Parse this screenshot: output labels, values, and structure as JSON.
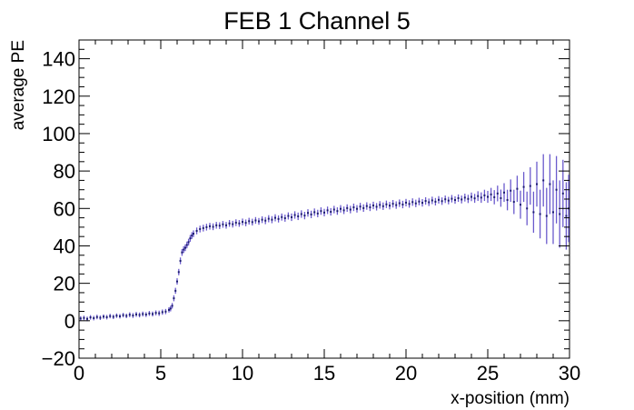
{
  "chart_data": {
    "type": "scatter",
    "title": "FEB 1 Channel 5",
    "xlabel": "x-position (mm)",
    "ylabel": "average PE",
    "xlim": [
      0,
      30
    ],
    "ylim": [
      -20,
      150
    ],
    "x_ticks": [
      0,
      5,
      10,
      15,
      20,
      25,
      30
    ],
    "x_tick_labels": [
      "0",
      "5",
      "10",
      "15",
      "20",
      "25",
      "30"
    ],
    "y_ticks": [
      -20,
      0,
      20,
      40,
      60,
      80,
      100,
      120,
      140
    ],
    "y_tick_labels": [
      "−20",
      "0",
      "20",
      "40",
      "60",
      "80",
      "100",
      "120",
      "140"
    ],
    "grid": false,
    "legend": "none",
    "series": [
      {
        "name": "average PE",
        "marker_color": "#1a1a6e",
        "errorbar_color": "#6a5acd",
        "points": [
          [
            0.1,
            1.2,
            1.2
          ],
          [
            0.3,
            1.5,
            1.2
          ],
          [
            0.5,
            1.0,
            1.2
          ],
          [
            0.7,
            1.8,
            1.2
          ],
          [
            0.9,
            1.4,
            1.2
          ],
          [
            1.1,
            2.0,
            1.2
          ],
          [
            1.3,
            1.6,
            1.2
          ],
          [
            1.5,
            2.2,
            1.2
          ],
          [
            1.7,
            1.9,
            1.2
          ],
          [
            1.9,
            2.5,
            1.2
          ],
          [
            2.1,
            2.1,
            1.2
          ],
          [
            2.3,
            2.7,
            1.2
          ],
          [
            2.5,
            2.4,
            1.2
          ],
          [
            2.7,
            3.0,
            1.2
          ],
          [
            2.9,
            2.6,
            1.2
          ],
          [
            3.1,
            3.2,
            1.3
          ],
          [
            3.3,
            2.8,
            1.3
          ],
          [
            3.5,
            3.4,
            1.3
          ],
          [
            3.7,
            3.1,
            1.3
          ],
          [
            3.9,
            3.6,
            1.3
          ],
          [
            4.1,
            3.3,
            1.3
          ],
          [
            4.3,
            3.9,
            1.3
          ],
          [
            4.5,
            3.6,
            1.3
          ],
          [
            4.7,
            4.2,
            1.3
          ],
          [
            4.9,
            4.0,
            1.4
          ],
          [
            5.1,
            4.6,
            1.4
          ],
          [
            5.3,
            4.9,
            1.4
          ],
          [
            5.5,
            5.8,
            1.4
          ],
          [
            5.6,
            6.5,
            1.5
          ],
          [
            5.7,
            8.0,
            1.5
          ],
          [
            5.8,
            12.0,
            1.6
          ],
          [
            5.9,
            16.0,
            1.6
          ],
          [
            6.0,
            21.0,
            1.7
          ],
          [
            6.1,
            26.0,
            1.7
          ],
          [
            6.2,
            32.0,
            1.8
          ],
          [
            6.3,
            36.5,
            1.8
          ],
          [
            6.4,
            38.0,
            1.8
          ],
          [
            6.5,
            39.0,
            1.8
          ],
          [
            6.6,
            40.5,
            1.8
          ],
          [
            6.7,
            42.0,
            1.8
          ],
          [
            6.8,
            44.0,
            1.8
          ],
          [
            6.9,
            45.5,
            1.8
          ],
          [
            7.0,
            46.5,
            1.8
          ],
          [
            7.2,
            48.0,
            1.8
          ],
          [
            7.4,
            49.0,
            1.8
          ],
          [
            7.6,
            49.5,
            1.8
          ],
          [
            7.8,
            50.0,
            1.8
          ],
          [
            8.0,
            50.5,
            1.8
          ],
          [
            8.2,
            50.2,
            1.8
          ],
          [
            8.4,
            51.0,
            1.8
          ],
          [
            8.6,
            50.8,
            1.8
          ],
          [
            8.8,
            51.5,
            1.8
          ],
          [
            9.0,
            51.0,
            1.8
          ],
          [
            9.2,
            52.0,
            1.8
          ],
          [
            9.4,
            51.6,
            1.8
          ],
          [
            9.6,
            52.4,
            1.8
          ],
          [
            9.8,
            52.0,
            1.8
          ],
          [
            10.0,
            52.8,
            1.8
          ],
          [
            10.2,
            52.3,
            1.8
          ],
          [
            10.4,
            53.2,
            1.8
          ],
          [
            10.6,
            52.7,
            1.8
          ],
          [
            10.8,
            53.6,
            1.8
          ],
          [
            11.0,
            53.1,
            1.8
          ],
          [
            11.2,
            54.0,
            1.8
          ],
          [
            11.4,
            53.5,
            1.9
          ],
          [
            11.6,
            54.5,
            1.9
          ],
          [
            11.8,
            54.0,
            1.9
          ],
          [
            12.0,
            55.0,
            1.9
          ],
          [
            12.2,
            54.4,
            1.9
          ],
          [
            12.4,
            55.4,
            1.9
          ],
          [
            12.6,
            54.8,
            1.9
          ],
          [
            12.8,
            56.0,
            1.9
          ],
          [
            13.0,
            55.3,
            2.0
          ],
          [
            13.2,
            56.5,
            2.0
          ],
          [
            13.4,
            55.8,
            2.0
          ],
          [
            13.6,
            57.0,
            2.0
          ],
          [
            13.8,
            56.2,
            2.0
          ],
          [
            14.0,
            57.6,
            2.0
          ],
          [
            14.2,
            56.8,
            2.0
          ],
          [
            14.4,
            58.0,
            2.0
          ],
          [
            14.6,
            57.3,
            2.0
          ],
          [
            14.8,
            58.6,
            2.0
          ],
          [
            15.0,
            57.8,
            2.0
          ],
          [
            15.2,
            59.0,
            2.0
          ],
          [
            15.4,
            58.2,
            2.0
          ],
          [
            15.6,
            59.4,
            2.0
          ],
          [
            15.8,
            58.6,
            2.0
          ],
          [
            16.0,
            59.8,
            2.0
          ],
          [
            16.2,
            59.0,
            2.0
          ],
          [
            16.4,
            60.2,
            2.0
          ],
          [
            16.6,
            59.4,
            2.0
          ],
          [
            16.8,
            60.6,
            2.0
          ],
          [
            17.0,
            59.8,
            2.0
          ],
          [
            17.2,
            61.0,
            2.0
          ],
          [
            17.4,
            60.2,
            2.0
          ],
          [
            17.6,
            61.3,
            2.0
          ],
          [
            17.8,
            60.6,
            2.0
          ],
          [
            18.0,
            61.6,
            2.0
          ],
          [
            18.2,
            60.9,
            2.0
          ],
          [
            18.4,
            61.9,
            2.0
          ],
          [
            18.6,
            61.2,
            2.0
          ],
          [
            18.8,
            62.2,
            2.0
          ],
          [
            19.0,
            61.5,
            2.0
          ],
          [
            19.2,
            62.5,
            2.0
          ],
          [
            19.4,
            61.8,
            2.0
          ],
          [
            19.6,
            62.8,
            2.0
          ],
          [
            19.8,
            62.1,
            2.0
          ],
          [
            20.0,
            63.1,
            2.0
          ],
          [
            20.2,
            62.4,
            2.0
          ],
          [
            20.4,
            63.4,
            2.0
          ],
          [
            20.6,
            62.7,
            2.0
          ],
          [
            20.8,
            63.7,
            2.0
          ],
          [
            21.0,
            63.0,
            2.0
          ],
          [
            21.2,
            64.0,
            2.0
          ],
          [
            21.4,
            63.3,
            2.0
          ],
          [
            21.6,
            64.3,
            2.0
          ],
          [
            21.8,
            63.6,
            2.0
          ],
          [
            22.0,
            64.6,
            2.0
          ],
          [
            22.2,
            63.9,
            2.0
          ],
          [
            22.4,
            64.9,
            2.0
          ],
          [
            22.6,
            64.2,
            2.0
          ],
          [
            22.8,
            65.2,
            2.0
          ],
          [
            23.0,
            64.5,
            2.0
          ],
          [
            23.2,
            65.5,
            2.0
          ],
          [
            23.4,
            64.8,
            2.1
          ],
          [
            23.6,
            65.8,
            2.1
          ],
          [
            23.8,
            65.1,
            2.2
          ],
          [
            24.0,
            66.2,
            2.3
          ],
          [
            24.2,
            65.4,
            2.4
          ],
          [
            24.4,
            66.6,
            2.6
          ],
          [
            24.6,
            65.8,
            2.8
          ],
          [
            24.8,
            67.0,
            3.0
          ],
          [
            25.0,
            66.2,
            3.2
          ],
          [
            25.2,
            67.5,
            3.5
          ],
          [
            25.4,
            66.0,
            3.8
          ],
          [
            25.6,
            68.0,
            4.2
          ],
          [
            25.8,
            65.5,
            4.6
          ],
          [
            26.0,
            68.5,
            5.0
          ],
          [
            26.2,
            64.5,
            5.5
          ],
          [
            26.4,
            69.5,
            6.0
          ],
          [
            26.6,
            63.5,
            6.5
          ],
          [
            26.8,
            70.5,
            7.0
          ],
          [
            27.0,
            62.0,
            7.5
          ],
          [
            27.2,
            71.5,
            8.0
          ],
          [
            27.4,
            60.0,
            9.0
          ],
          [
            27.6,
            72.0,
            10.0
          ],
          [
            27.8,
            58.0,
            11.0
          ],
          [
            28.0,
            73.0,
            12.0
          ],
          [
            28.2,
            57.0,
            13.0
          ],
          [
            28.4,
            75.0,
            14.0
          ],
          [
            28.6,
            56.0,
            15.0
          ],
          [
            28.8,
            73.0,
            16.0
          ],
          [
            29.0,
            58.0,
            17.0
          ],
          [
            29.2,
            70.0,
            18.0
          ],
          [
            29.4,
            57.0,
            18.0
          ],
          [
            29.6,
            68.0,
            18.0
          ],
          [
            29.8,
            56.0,
            18.0
          ],
          [
            29.95,
            60.0,
            18.0
          ]
        ]
      }
    ]
  }
}
